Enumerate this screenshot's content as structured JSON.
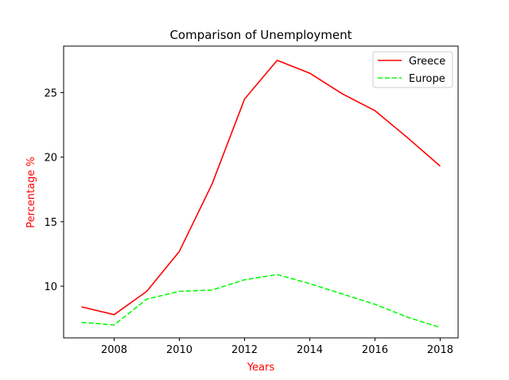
{
  "chart_data": {
    "type": "line",
    "title": "Comparison of Unemployment",
    "xlabel": "Years",
    "ylabel": "Percentage %",
    "label_color": "#ff0000",
    "xlim": [
      2006.45,
      2018.55
    ],
    "ylim": [
      6.0,
      28.6
    ],
    "xticks": [
      2008,
      2010,
      2012,
      2014,
      2016,
      2018
    ],
    "yticks": [
      10,
      15,
      20,
      25
    ],
    "grid": false,
    "legend_position": "top-right",
    "x": [
      2007,
      2008,
      2009,
      2010,
      2011,
      2012,
      2013,
      2014,
      2015,
      2016,
      2017,
      2018
    ],
    "series": [
      {
        "name": "Greece",
        "color": "#ff0000",
        "style": "solid",
        "values": [
          8.4,
          7.8,
          9.6,
          12.7,
          17.9,
          24.5,
          27.5,
          26.5,
          24.9,
          23.6,
          21.5,
          19.3
        ]
      },
      {
        "name": "Europe",
        "color": "#00ff00",
        "style": "dashed",
        "values": [
          7.2,
          7.0,
          9.0,
          9.6,
          9.7,
          10.5,
          10.9,
          10.2,
          9.4,
          8.6,
          7.6,
          6.8
        ]
      }
    ]
  }
}
